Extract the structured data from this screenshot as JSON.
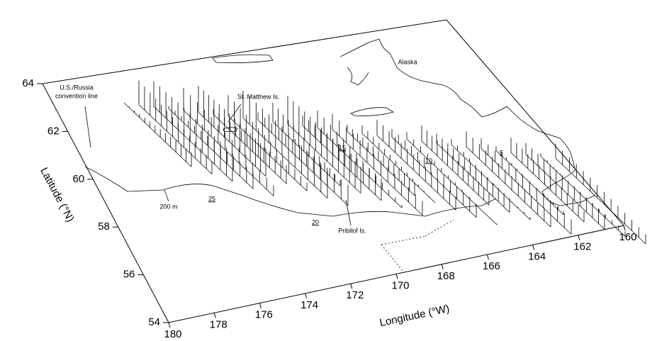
{
  "axes": {
    "x_title": "Longitude (°W)",
    "x_ticks": [
      180,
      178,
      176,
      174,
      172,
      170,
      168,
      166,
      164,
      162,
      160
    ],
    "y_title": "Latitude (°N)",
    "y_ticks": [
      54,
      56,
      58,
      60,
      62,
      64
    ]
  },
  "labels": {
    "convention_line": [
      "U.S./Russia",
      "convention line"
    ],
    "st_matthew": "St. Matthew Is.",
    "alaska": "Alaska",
    "depth": "200 m",
    "pribilof": "Pribilof Is."
  },
  "transects": [
    "5",
    "10",
    "15",
    "20",
    "25"
  ]
}
